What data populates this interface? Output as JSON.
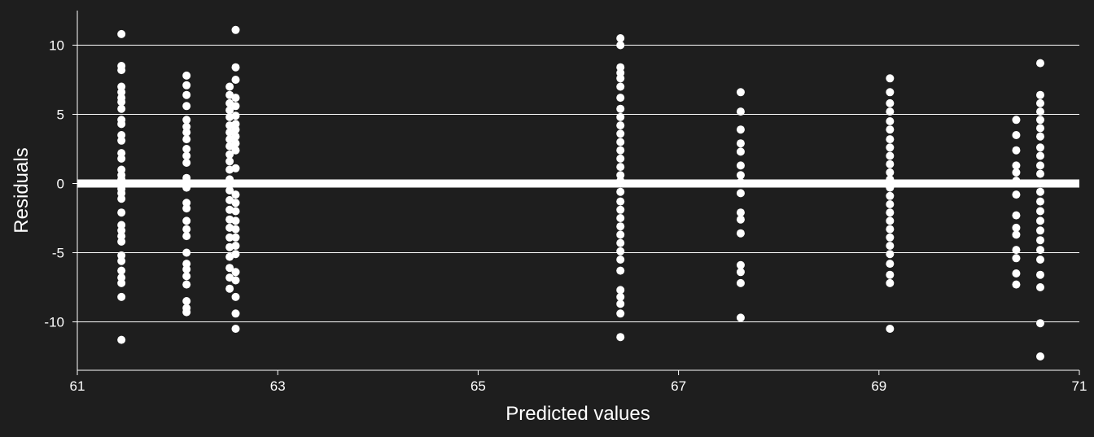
{
  "chart_data": {
    "type": "scatter",
    "title": "",
    "xlabel": "Predicted values",
    "ylabel": "Residuals",
    "xlim": [
      61,
      71
    ],
    "ylim": [
      -13.5,
      12.5
    ],
    "xticks": [
      61,
      63,
      65,
      67,
      69,
      71
    ],
    "yticks": [
      10,
      5,
      0,
      -5,
      -10
    ],
    "grid": "horizontal",
    "legend": "none",
    "colors": {
      "background": "#1e1e1e",
      "point": "#ffffff",
      "grid": "#ffffff",
      "reference_line": "#ffffff"
    },
    "reference_line_y": 0,
    "columns": [
      {
        "x": 61.44,
        "residuals": [
          10.8,
          8.5,
          8.2,
          7.0,
          6.6,
          6.2,
          5.9,
          5.4,
          4.6,
          4.3,
          3.5,
          3.1,
          2.2,
          1.8,
          1.0,
          0.6,
          0.3,
          -0.4,
          -0.7,
          -1.1,
          -2.1,
          -3.0,
          -3.4,
          -3.8,
          -4.2,
          -5.2,
          -5.6,
          -6.3,
          -6.8,
          -7.2,
          -8.2,
          -11.3
        ]
      },
      {
        "x": 62.09,
        "residuals": [
          7.8,
          7.1,
          6.4,
          5.6,
          4.6,
          4.1,
          3.7,
          3.2,
          2.5,
          2.0,
          1.5,
          0.4,
          0.1,
          -0.3,
          -1.4,
          -1.8,
          -2.7,
          -3.3,
          -3.8,
          -5.0,
          -5.8,
          -6.2,
          -6.7,
          -7.3,
          -8.5,
          -9.0,
          -9.3
        ]
      },
      {
        "x": 62.52,
        "residuals": [
          7.0,
          6.4,
          5.8,
          5.3,
          4.8,
          4.2,
          3.7,
          3.2,
          2.7,
          2.1,
          1.6,
          1.0,
          0.3,
          -0.5,
          -1.2,
          -1.9,
          -2.6,
          -3.2,
          -3.9,
          -4.6,
          -5.3,
          -6.1,
          -6.8,
          -7.6
        ]
      },
      {
        "x": 62.58,
        "residuals": [
          11.1,
          8.4,
          7.5,
          6.2,
          5.6,
          4.9,
          4.3,
          3.9,
          3.4,
          2.9,
          2.4,
          1.1,
          -0.8,
          -1.4,
          -2.0,
          -2.7,
          -3.3,
          -3.9,
          -4.5,
          -5.1,
          -6.4,
          -7.0,
          -8.2,
          -9.4,
          -10.5
        ]
      },
      {
        "x": 66.42,
        "residuals": [
          10.5,
          10.0,
          8.4,
          8.0,
          7.6,
          7.0,
          6.2,
          5.4,
          4.8,
          4.2,
          3.6,
          3.0,
          2.4,
          1.8,
          1.2,
          0.6,
          0.2,
          -0.6,
          -1.3,
          -1.9,
          -2.5,
          -3.1,
          -3.7,
          -4.3,
          -4.9,
          -5.5,
          -6.3,
          -7.7,
          -8.2,
          -8.7,
          -9.4,
          -11.1
        ]
      },
      {
        "x": 67.62,
        "residuals": [
          6.6,
          5.2,
          3.9,
          2.9,
          2.3,
          1.3,
          0.6,
          0.1,
          -0.7,
          -2.1,
          -2.6,
          -3.6,
          -5.9,
          -6.4,
          -7.2,
          -9.7
        ]
      },
      {
        "x": 69.11,
        "residuals": [
          7.6,
          6.6,
          5.8,
          5.2,
          4.5,
          3.9,
          3.2,
          2.6,
          2.0,
          1.4,
          0.8,
          0.3,
          -0.3,
          -0.9,
          -1.5,
          -2.1,
          -2.7,
          -3.3,
          -3.9,
          -4.5,
          -5.1,
          -5.8,
          -6.6,
          -7.2,
          -10.5
        ]
      },
      {
        "x": 70.37,
        "residuals": [
          4.6,
          3.5,
          2.4,
          1.3,
          0.8,
          0.2,
          -0.8,
          -2.3,
          -3.2,
          -3.7,
          -4.8,
          -5.4,
          -6.5,
          -7.3
        ]
      },
      {
        "x": 70.61,
        "residuals": [
          8.7,
          6.4,
          5.8,
          5.2,
          4.6,
          4.0,
          3.4,
          2.6,
          2.0,
          1.3,
          0.7,
          0.0,
          -0.6,
          -1.3,
          -2.0,
          -2.7,
          -3.4,
          -4.1,
          -4.8,
          -5.5,
          -6.6,
          -7.5,
          -10.1,
          -12.5
        ]
      }
    ]
  }
}
